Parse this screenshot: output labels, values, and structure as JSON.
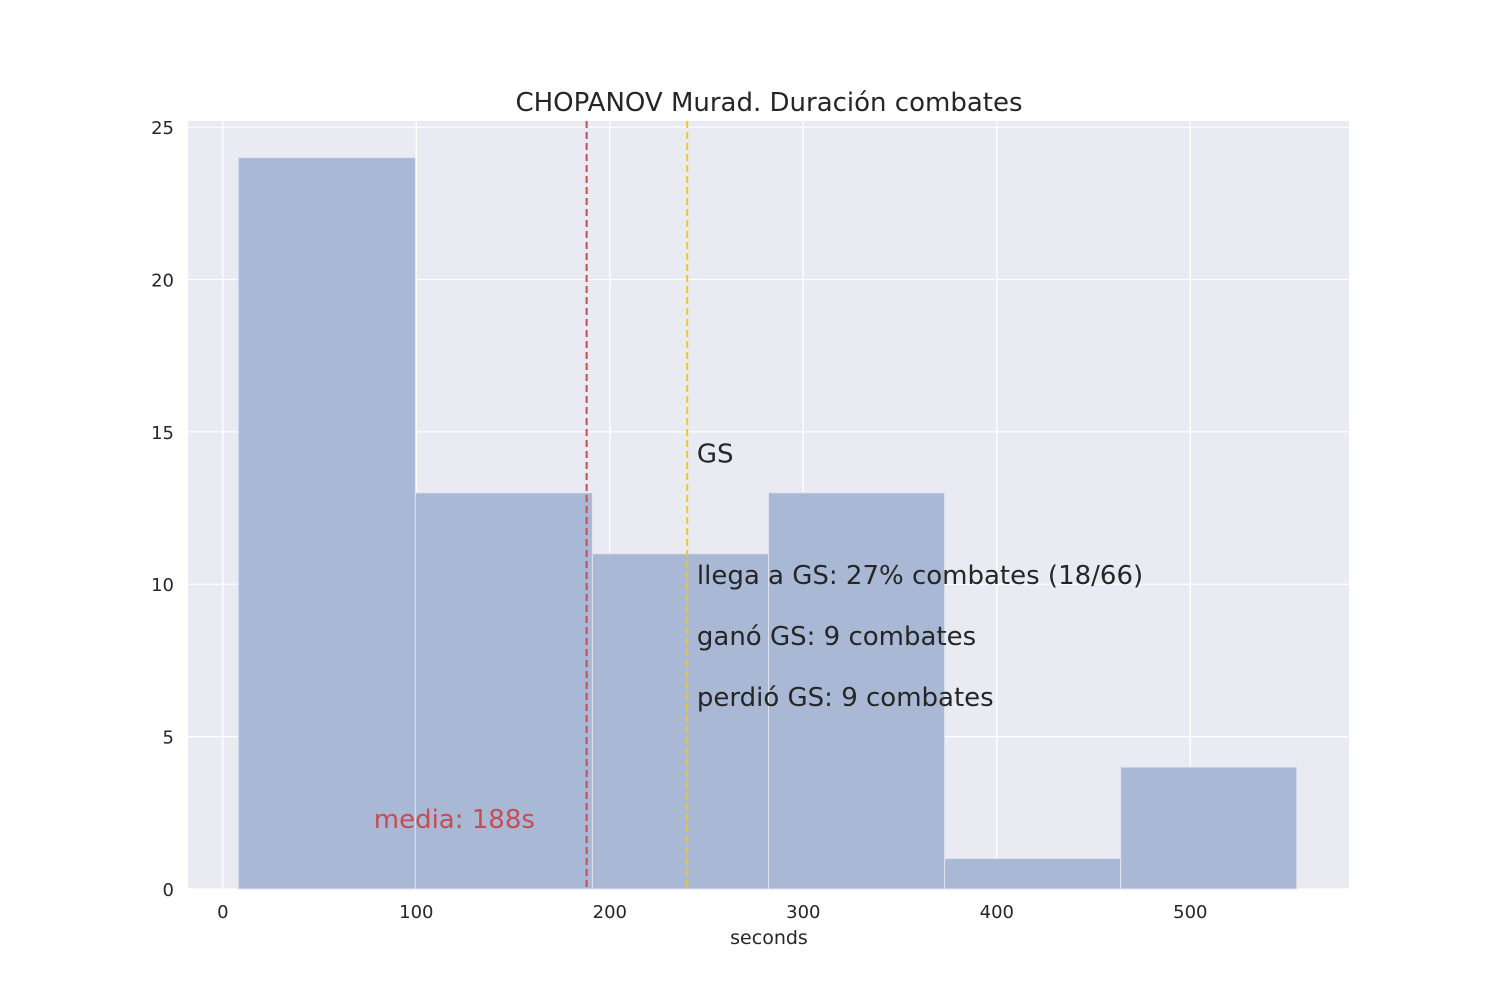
{
  "chart_data": {
    "type": "bar",
    "title": "CHOPANOV Murad. Duración combates",
    "xlabel": "seconds",
    "ylabel": "",
    "xlim": [
      -18,
      582
    ],
    "ylim": [
      0,
      25.2
    ],
    "grid": true,
    "x_ticks": [
      0,
      100,
      200,
      300,
      400,
      500
    ],
    "y_ticks": [
      0,
      5,
      10,
      15,
      20,
      25
    ],
    "bins": [
      {
        "start": 8,
        "end": 99.5,
        "count": 24
      },
      {
        "start": 99.5,
        "end": 191,
        "count": 13
      },
      {
        "start": 191,
        "end": 282,
        "count": 11
      },
      {
        "start": 282,
        "end": 373,
        "count": 13
      },
      {
        "start": 373,
        "end": 464,
        "count": 1
      },
      {
        "start": 464,
        "end": 555,
        "count": 4
      }
    ],
    "bar_color": "#a9b8d5",
    "background_color": "#eaeaf2",
    "mean_line": {
      "x": 188,
      "color": "#c44e52",
      "label": "media: 188s",
      "label_x": 78,
      "label_y": 2
    },
    "gs_line": {
      "x": 240,
      "color": "#f5c518",
      "label": "GS",
      "label_x": 245,
      "label_y": 14
    },
    "annotations": [
      {
        "text": "llega a GS: 27% combates (18/66)",
        "x": 245,
        "y": 10
      },
      {
        "text": "ganó GS: 9 combates",
        "x": 245,
        "y": 8
      },
      {
        "text": "perdió GS: 9 combates",
        "x": 245,
        "y": 6
      }
    ]
  }
}
